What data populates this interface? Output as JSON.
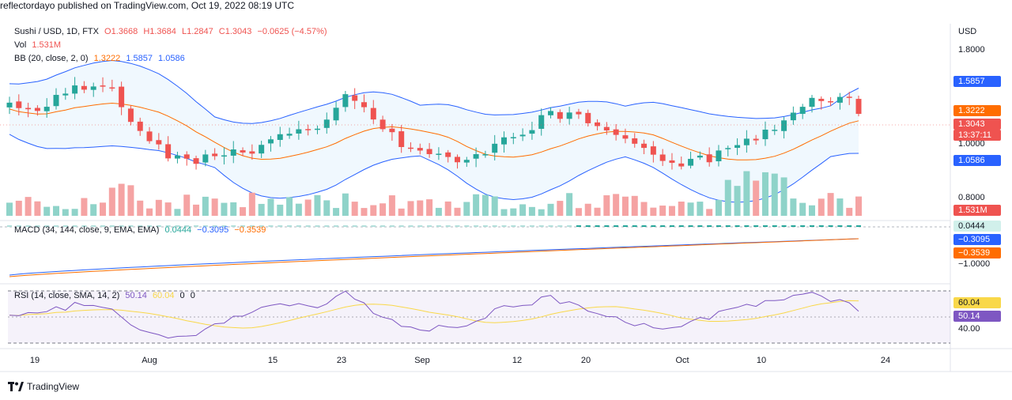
{
  "header": {
    "text": "reflectordayo published on TradingView.com, Oct 19, 2022 08:19 UTC"
  },
  "colors": {
    "up": "#26a69a",
    "down": "#ef5350",
    "volume_up": "#8fd3c9",
    "volume_down": "#f5a3a3",
    "bb_band": "#2962ff",
    "bb_basis": "#ff6d00",
    "macd": "#2962ff",
    "signal": "#ff6d00",
    "rsi": "#7e57c2",
    "rsi_ma": "#f9d849"
  },
  "legend": {
    "symbol": "Sushi / USD, 1D, FTX",
    "open": "O1.3668",
    "high": "H1.3684",
    "low": "L1.2847",
    "close": "C1.3043",
    "change": "−0.0625 (−4.57%)",
    "vol_label": "Vol",
    "vol_value": "1.531M",
    "bb_label": "BB (20, close, 2, 0)",
    "bb_basis": "1.3222",
    "bb_upper": "1.5857",
    "bb_lower": "1.0586",
    "macd_label": "MACD (34, 144, close, 9, EMA, EMA)",
    "macd_hist": "0.0444",
    "macd_line": "−0.3095",
    "macd_signal": "−0.3539",
    "rsi_label": "RSI (14, close, SMA, 14, 2)",
    "rsi_value": "50.14",
    "rsi_ma": "60.04",
    "rsi_a": "0",
    "rsi_b": "0"
  },
  "price_axis": {
    "currency": "USD",
    "ticks": [
      "1.8000",
      "1.0000",
      "0.8000"
    ],
    "badges": {
      "bb_upper": "1.5857",
      "bb_basis": "1.3222",
      "last": "1.3043",
      "countdown": "13:37:11",
      "bb_lower": "1.0586",
      "volume": "1.531M"
    }
  },
  "macd_axis": {
    "tick": "−1.0000",
    "badges": {
      "hist": "0.0444",
      "macd": "−0.3095",
      "signal": "−0.3539"
    }
  },
  "rsi_axis": {
    "tick": "40.00",
    "badges": {
      "ma": "60.04",
      "rsi": "50.14"
    }
  },
  "time_axis": {
    "labels": [
      "19",
      "Aug",
      "15",
      "23",
      "Sep",
      "12",
      "20",
      "Oct",
      "10",
      "24"
    ]
  },
  "footer": {
    "brand": "TradingView"
  }
}
